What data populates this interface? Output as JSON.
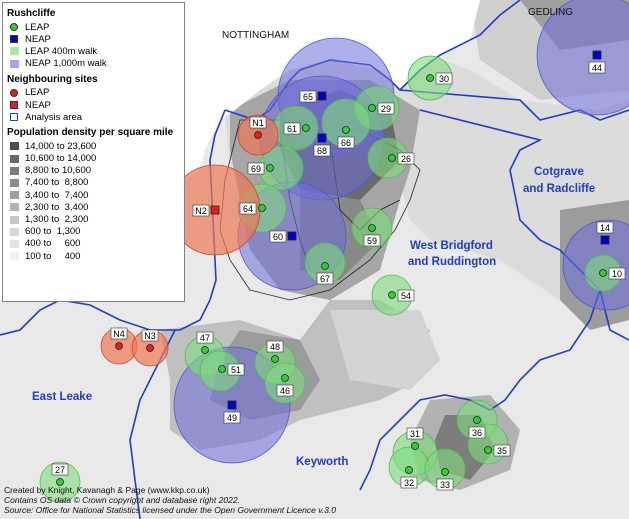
{
  "legend": {
    "section1_title": "Rushcliffe",
    "rushcliffe_items": [
      {
        "label": "LEAP",
        "symbol": "green-dot"
      },
      {
        "label": "NEAP",
        "symbol": "blue-square"
      },
      {
        "label": "LEAP 400m walk",
        "symbol": "light-green-swatch"
      },
      {
        "label": "NEAP 1,000m walk",
        "symbol": "light-blue-swatch"
      }
    ],
    "section2_title": "Neighbouring sites",
    "neighbour_items": [
      {
        "label": "LEAP",
        "symbol": "red-dot"
      },
      {
        "label": "NEAP",
        "symbol": "red-square"
      },
      {
        "label": "Analysis area",
        "symbol": "blue-outline-box"
      }
    ],
    "section3_title": "Population density per square mile",
    "density_classes": [
      {
        "label": "14,000 to 23,600",
        "color": "#4d4d4d"
      },
      {
        "label": "10,600 to 14,000",
        "color": "#666666"
      },
      {
        "label": "8,800 to 10,600",
        "color": "#7a7a7a"
      },
      {
        "label": "7,400 to  8,800",
        "color": "#8c8c8c"
      },
      {
        "label": "3,400 to  7,400",
        "color": "#a0a0a0"
      },
      {
        "label": "2,300 to  3,400",
        "color": "#b4b4b4"
      },
      {
        "label": "1,300 to  2,300",
        "color": "#c6c6c6"
      },
      {
        "label": "600 to  1,300",
        "color": "#d6d6d6"
      },
      {
        "label": "400 to     600",
        "color": "#e4e4e4"
      },
      {
        "label": "100 to     400",
        "color": "#f0f0f0"
      }
    ]
  },
  "places": {
    "nottingham": "NOTTINGHAM",
    "gedling": "GEDLING",
    "cotgrave_1": "Cotgrave",
    "cotgrave_2": "and Radcliffe",
    "westbridgford_1": "West Bridgford",
    "westbridgford_2": "and Ruddington",
    "eastleake": "East Leake",
    "keyworth": "Keyworth"
  },
  "sites": {
    "leap": [
      "30",
      "29",
      "61",
      "66",
      "26",
      "69",
      "64",
      "59",
      "67",
      "54",
      "47",
      "51",
      "48",
      "46",
      "36",
      "31",
      "35",
      "32",
      "33",
      "27",
      "10"
    ],
    "neap": [
      "44",
      "65",
      "68",
      "60",
      "49",
      "14"
    ],
    "neighbour_leap": [
      "N1",
      "N4",
      "N3"
    ],
    "neighbour_neap": [
      "N2"
    ]
  },
  "credits": {
    "line1": "Created by Knight, Kavanagh & Page (www.kkp.co.uk)",
    "line2": "Contains OS data © Crown copyright and database right 2022.",
    "line3": "Source: Office for National Statistics licensed under the Open Government Licence v.3.0"
  },
  "colors": {
    "leap_dot": "#33cc33",
    "leap_buffer": "#7fdc7f",
    "neap_square": "#0000cc",
    "neap_buffer": "#6e6edc",
    "neighbour": "#dd2222",
    "boundary": "#1f3fbf"
  }
}
